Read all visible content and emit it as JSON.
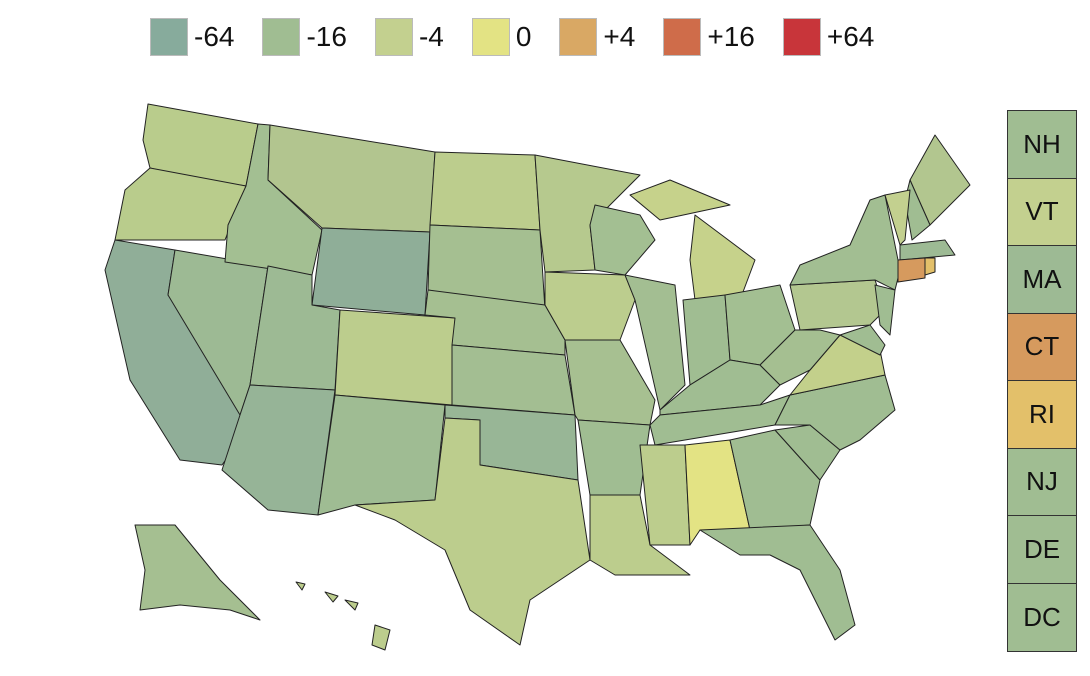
{
  "legend": [
    {
      "label": "-64",
      "color": "#87ab9c"
    },
    {
      "label": "-16",
      "color": "#a0bd92"
    },
    {
      "label": "-4",
      "color": "#c3d08f"
    },
    {
      "label": "0",
      "color": "#e3e384"
    },
    {
      "label": "+4",
      "color": "#d9a864"
    },
    {
      "label": "+16",
      "color": "#cf6c4a"
    },
    {
      "label": "+64",
      "color": "#c8353a"
    }
  ],
  "map": {
    "regions": [
      "#b9cc8c",
      "#b9cc8c",
      "#90ae98",
      "#9dba94",
      "#a3bf92",
      "#b2c58f",
      "#8fae98",
      "#9dba94",
      "#96b497",
      "#bccd8d",
      "#9fbc93",
      "#bccd8d",
      "#a5bf91",
      "#a5bf91",
      "#a3be92",
      "#98b696",
      "#bccd8d",
      "#b6c98e",
      "#bccd8e",
      "#a7c091",
      "#a0bd92",
      "#bccd8d",
      "#a3bf92",
      "#a3be92",
      "#c6d28b",
      "#a0bd92",
      "#a3bf92",
      "#a0bd92",
      "#a0bd92",
      "#bccd8d",
      "#e3e384",
      "#a0bd92",
      "#a0bd92",
      "#a0bd92",
      "#a0bd92",
      "#c3d08b",
      "#a5bf91",
      "#b3c790",
      "#a2be92",
      "#b2c68f",
      "#a0bd92",
      "#c3d08f",
      "#9dba94",
      "#d69a5e",
      "#e3c06a",
      "#a0bd92",
      "#a0bd92",
      "#a5bf91",
      "#bccd8d"
    ]
  },
  "sidebar": [
    {
      "label": "NH",
      "color": "#a0bd92"
    },
    {
      "label": "VT",
      "color": "#c3d08f"
    },
    {
      "label": "MA",
      "color": "#9dba94"
    },
    {
      "label": "CT",
      "color": "#d69a5e"
    },
    {
      "label": "RI",
      "color": "#e3c06a"
    },
    {
      "label": "NJ",
      "color": "#a0bd92"
    },
    {
      "label": "DE",
      "color": "#a0bd92"
    },
    {
      "label": "DC",
      "color": "#a0bd92"
    }
  ]
}
